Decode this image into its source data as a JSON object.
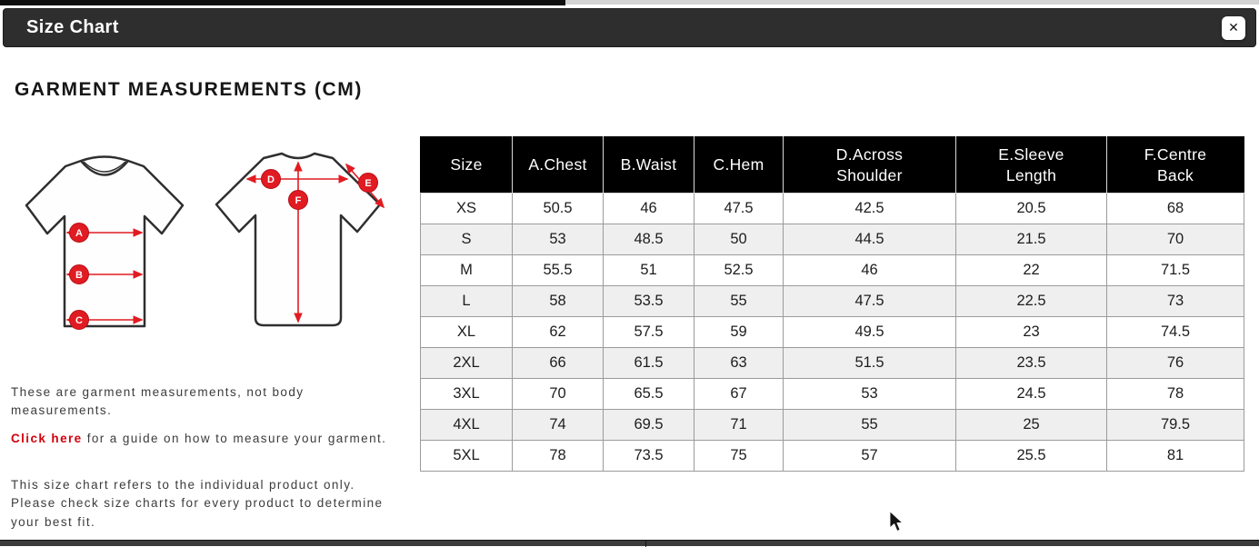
{
  "modal": {
    "title": "Size Chart",
    "close_glyph": "✕"
  },
  "heading": "GARMENT MEASUREMENTS (CM)",
  "diagram": {
    "front_labels": [
      "A",
      "B",
      "C"
    ],
    "back_labels": [
      "D",
      "E",
      "F"
    ]
  },
  "notes": {
    "note1": "These are garment measurements, not body measurements.",
    "link_text": "Click here",
    "note2_rest": " for a guide on how to measure your garment.",
    "note3": "This size chart refers to the individual product only. Please check size charts for every product to determine your best fit."
  },
  "table": {
    "columns": [
      "Size",
      "A.Chest",
      "B.Waist",
      "C.Hem",
      "D.Across Shoulder",
      "E.Sleeve Length",
      "F.Centre Back"
    ],
    "rows": [
      [
        "XS",
        "50.5",
        "46",
        "47.5",
        "42.5",
        "20.5",
        "68"
      ],
      [
        "S",
        "53",
        "48.5",
        "50",
        "44.5",
        "21.5",
        "70"
      ],
      [
        "M",
        "55.5",
        "51",
        "52.5",
        "46",
        "22",
        "71.5"
      ],
      [
        "L",
        "58",
        "53.5",
        "55",
        "47.5",
        "22.5",
        "73"
      ],
      [
        "XL",
        "62",
        "57.5",
        "59",
        "49.5",
        "23",
        "74.5"
      ],
      [
        "2XL",
        "66",
        "61.5",
        "63",
        "51.5",
        "23.5",
        "76"
      ],
      [
        "3XL",
        "70",
        "65.5",
        "67",
        "53",
        "24.5",
        "78"
      ],
      [
        "4XL",
        "74",
        "69.5",
        "71",
        "55",
        "25",
        "79.5"
      ],
      [
        "5XL",
        "78",
        "73.5",
        "75",
        "57",
        "25.5",
        "81"
      ]
    ]
  },
  "colors": {
    "accent_red": "#e11b22",
    "link_red": "#d3000c",
    "modal_header_bg": "#2e2e2e",
    "table_header_bg": "#000000",
    "alt_row_bg": "#efefef"
  }
}
